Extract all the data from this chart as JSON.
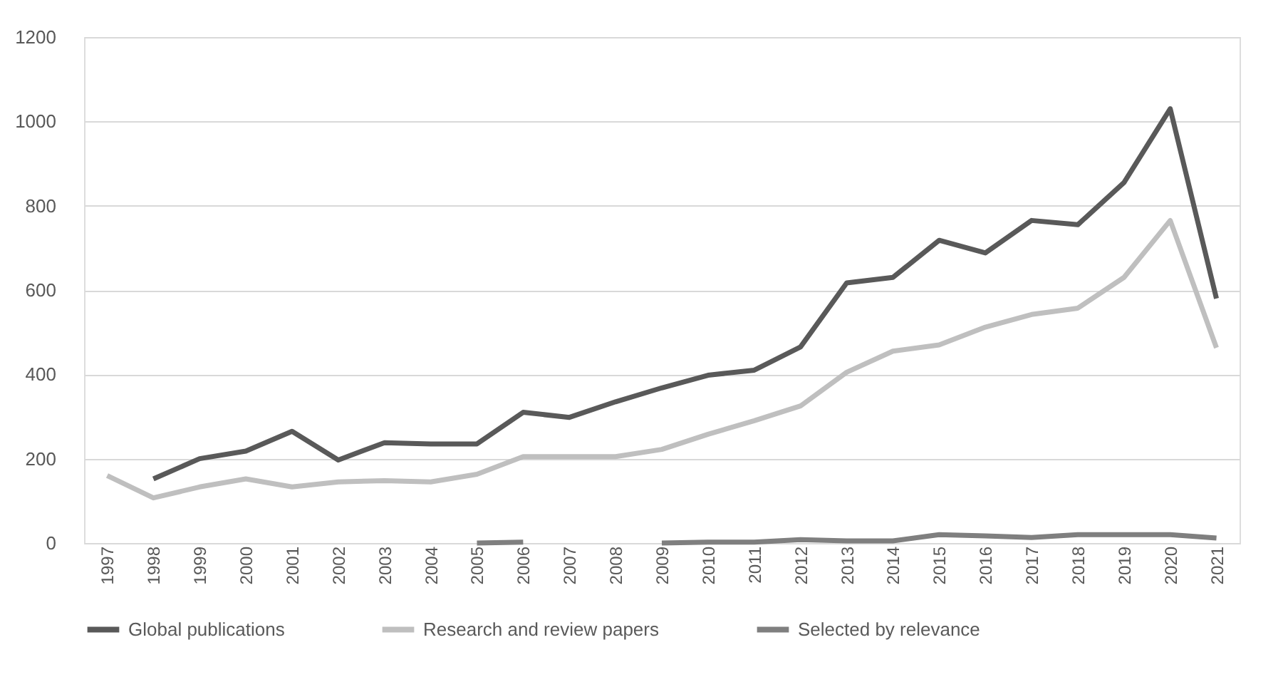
{
  "chart_data": {
    "type": "line",
    "categories": [
      "1997",
      "1998",
      "1999",
      "2000",
      "2001",
      "2002",
      "2003",
      "2004",
      "2005",
      "2006",
      "2007",
      "2008",
      "2009",
      "2010",
      "2011",
      "2012",
      "2013",
      "2014",
      "2015",
      "2016",
      "2017",
      "2018",
      "2019",
      "2020",
      "2021"
    ],
    "series": [
      {
        "name": "Global publications",
        "color": "#595959",
        "values": [
          null,
          152,
          200,
          218,
          265,
          197,
          238,
          235,
          235,
          310,
          298,
          335,
          368,
          398,
          410,
          465,
          617,
          630,
          718,
          688,
          765,
          755,
          855,
          1030,
          580
        ]
      },
      {
        "name": "Research and review papers",
        "color": "#bfbfbf",
        "values": [
          160,
          107,
          133,
          152,
          133,
          145,
          148,
          145,
          163,
          205,
          205,
          205,
          222,
          258,
          290,
          325,
          405,
          455,
          470,
          512,
          542,
          557,
          630,
          765,
          463
        ]
      },
      {
        "name": "Selected by relevance",
        "color": "#7f7f7f",
        "values": [
          null,
          null,
          null,
          null,
          null,
          null,
          null,
          null,
          0,
          2,
          null,
          null,
          0,
          2,
          2,
          8,
          5,
          5,
          20,
          17,
          13,
          20,
          20,
          20,
          12
        ]
      }
    ],
    "ylim": [
      0,
      1200
    ],
    "yticks": [
      0,
      200,
      400,
      600,
      800,
      1000,
      1200
    ],
    "grid": "y",
    "legend": "bottom",
    "marker": "none",
    "line_style": "solid"
  }
}
